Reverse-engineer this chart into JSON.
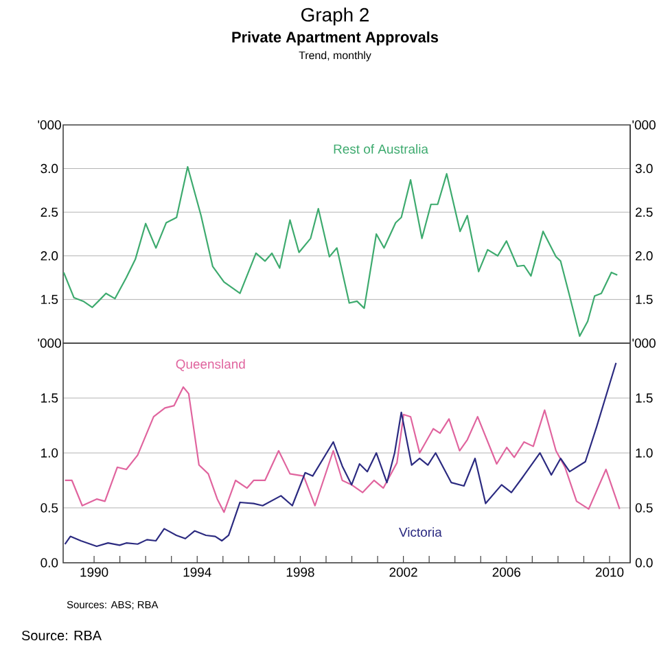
{
  "chart_data": [
    {
      "type": "line",
      "title": "Private Apartment Approvals",
      "subtitle": "Trend, monthly",
      "annotations": [
        "Graph 2"
      ],
      "xlim": [
        1988.8,
        2010.8
      ],
      "ylim": [
        1.0,
        3.5
      ],
      "ylabel": "'000",
      "y2label": "'000",
      "yticks": [
        {
          "value": 1.5,
          "label": "1.5"
        },
        {
          "value": 2.0,
          "label": "2.0"
        },
        {
          "value": 2.5,
          "label": "2.5"
        },
        {
          "value": 3.0,
          "label": "3.0"
        }
      ],
      "y2lim": [
        1.0,
        3.5
      ],
      "y2ticks": [
        {
          "value": 1.5,
          "label": "1.5"
        },
        {
          "value": 2.0,
          "label": "2.0"
        },
        {
          "value": 2.5,
          "label": "2.5"
        },
        {
          "value": 3.0,
          "label": "3.0"
        }
      ],
      "grid": "y",
      "tick_labels": "y",
      "series": [
        {
          "name": "Rest of Australia",
          "color": "#3daa6e",
          "x": [
            1988.82,
            1989.22,
            1989.58,
            1989.93,
            1990.2,
            1990.46,
            1990.81,
            1991.25,
            1991.6,
            1992.0,
            1992.4,
            1992.8,
            1993.2,
            1993.63,
            1994.15,
            1994.6,
            1995.04,
            1995.66,
            1996.28,
            1996.63,
            1996.9,
            1997.2,
            1997.6,
            1997.95,
            1998.4,
            1998.7,
            1999.13,
            1999.42,
            1999.9,
            2000.2,
            2000.48,
            2000.95,
            2001.25,
            2001.7,
            2001.92,
            2002.28,
            2002.72,
            2003.07,
            2003.33,
            2003.68,
            2004.2,
            2004.48,
            2004.92,
            2005.27,
            2005.66,
            2006.0,
            2006.42,
            2006.68,
            2006.95,
            2007.42,
            2007.92,
            2008.1,
            2008.45,
            2008.84,
            2009.15,
            2009.42,
            2009.68,
            2010.07,
            2010.3
          ],
          "values": [
            1.81,
            1.52,
            1.48,
            1.41,
            1.49,
            1.57,
            1.51,
            1.75,
            1.96,
            2.37,
            2.09,
            2.38,
            2.44,
            3.02,
            2.46,
            1.88,
            1.7,
            1.57,
            2.03,
            1.94,
            2.03,
            1.86,
            2.41,
            2.04,
            2.2,
            2.54,
            1.99,
            2.09,
            1.46,
            1.48,
            1.4,
            2.25,
            2.09,
            2.38,
            2.44,
            2.87,
            2.2,
            2.59,
            2.59,
            2.94,
            2.28,
            2.46,
            1.82,
            2.07,
            2.0,
            2.17,
            1.88,
            1.89,
            1.77,
            2.28,
            1.99,
            1.94,
            1.54,
            1.08,
            1.25,
            1.54,
            1.57,
            1.81,
            1.78
          ]
        }
      ]
    },
    {
      "type": "line",
      "annotations": [
        "Sources: ABS; RBA",
        "Source: RBA"
      ],
      "xlim": [
        1988.8,
        2010.8
      ],
      "xticks": [
        {
          "value": 1990,
          "label": "1990"
        },
        {
          "value": 1991,
          "label": null
        },
        {
          "value": 1992,
          "label": null
        },
        {
          "value": 1993,
          "label": null
        },
        {
          "value": 1994,
          "label": "1994"
        },
        {
          "value": 1995,
          "label": null
        },
        {
          "value": 1996,
          "label": null
        },
        {
          "value": 1997,
          "label": null
        },
        {
          "value": 1998,
          "label": "1998"
        },
        {
          "value": 1999,
          "label": null
        },
        {
          "value": 2000,
          "label": null
        },
        {
          "value": 2001,
          "label": null
        },
        {
          "value": 2002,
          "label": "2002"
        },
        {
          "value": 2003,
          "label": null
        },
        {
          "value": 2004,
          "label": null
        },
        {
          "value": 2005,
          "label": null
        },
        {
          "value": 2006,
          "label": "2006"
        },
        {
          "value": 2007,
          "label": null
        },
        {
          "value": 2008,
          "label": null
        },
        {
          "value": 2009,
          "label": null
        },
        {
          "value": 2010,
          "label": "2010"
        }
      ],
      "ylim": [
        0,
        2.0
      ],
      "ylabel": "'000",
      "y2label": "'000",
      "yticks": [
        {
          "value": 0,
          "label": "0.0"
        },
        {
          "value": 0.5,
          "label": "0.5"
        },
        {
          "value": 1.0,
          "label": "1.0"
        },
        {
          "value": 1.5,
          "label": "1.5"
        }
      ],
      "y2lim": [
        0,
        2.0
      ],
      "y2ticks": [
        {
          "value": 0,
          "label": "0.0"
        },
        {
          "value": 0.5,
          "label": "0.5"
        },
        {
          "value": 1.0,
          "label": "1.0"
        },
        {
          "value": 1.5,
          "label": "1.5"
        }
      ],
      "grid": "y",
      "series": [
        {
          "name": "Queensland",
          "color": "#e0649e",
          "x": [
            1988.87,
            1989.14,
            1989.54,
            1990.1,
            1990.42,
            1990.9,
            1991.25,
            1991.69,
            1992.31,
            1992.75,
            1993.1,
            1993.46,
            1993.67,
            1994.07,
            1994.43,
            1994.78,
            1995.04,
            1995.49,
            1995.93,
            1996.19,
            1996.63,
            1997.16,
            1997.6,
            1998.13,
            1998.57,
            1999.28,
            1999.63,
            1999.99,
            2000.42,
            2000.86,
            2001.22,
            2001.75,
            2002.01,
            2002.28,
            2002.63,
            2003.16,
            2003.42,
            2003.77,
            2004.18,
            2004.48,
            2004.88,
            2005.62,
            2006.01,
            2006.3,
            2006.68,
            2007.04,
            2007.48,
            2007.92,
            2008.27,
            2008.72,
            2009.19,
            2009.86,
            2010.39
          ],
          "values": [
            0.75,
            0.75,
            0.52,
            0.58,
            0.56,
            0.87,
            0.85,
            0.98,
            1.33,
            1.41,
            1.43,
            1.6,
            1.54,
            0.89,
            0.81,
            0.58,
            0.46,
            0.75,
            0.68,
            0.75,
            0.75,
            1.02,
            0.81,
            0.79,
            0.52,
            1.02,
            0.75,
            0.71,
            0.64,
            0.75,
            0.68,
            0.91,
            1.35,
            1.33,
            1.0,
            1.22,
            1.18,
            1.31,
            1.02,
            1.12,
            1.33,
            0.9,
            1.05,
            0.96,
            1.1,
            1.06,
            1.39,
            1.02,
            0.87,
            0.56,
            0.49,
            0.85,
            0.49
          ]
        },
        {
          "name": "Victoria",
          "color": "#2b2a80",
          "x": [
            1988.87,
            1989.08,
            1989.49,
            1990.1,
            1990.54,
            1990.99,
            1991.25,
            1991.69,
            1992.05,
            1992.4,
            1992.72,
            1993.19,
            1993.54,
            1993.9,
            1994.34,
            1994.7,
            1994.96,
            1995.22,
            1995.66,
            1996.19,
            1996.54,
            1997.25,
            1997.69,
            1998.19,
            1998.48,
            1999.28,
            1999.63,
            1999.99,
            2000.3,
            2000.6,
            2000.95,
            2001.36,
            2001.66,
            2001.92,
            2002.32,
            2002.63,
            2002.95,
            2003.25,
            2003.86,
            2004.35,
            2004.78,
            2005.19,
            2005.81,
            2006.19,
            2006.6,
            2007.3,
            2007.74,
            2008.1,
            2008.45,
            2009.06,
            2009.5,
            2010.25
          ],
          "values": [
            0.17,
            0.24,
            0.2,
            0.15,
            0.18,
            0.16,
            0.18,
            0.17,
            0.21,
            0.2,
            0.31,
            0.25,
            0.22,
            0.29,
            0.25,
            0.24,
            0.2,
            0.25,
            0.55,
            0.54,
            0.52,
            0.61,
            0.52,
            0.82,
            0.79,
            1.1,
            0.88,
            0.71,
            0.9,
            0.83,
            1.0,
            0.73,
            1.0,
            1.37,
            0.89,
            0.95,
            0.89,
            1.0,
            0.73,
            0.7,
            0.95,
            0.54,
            0.71,
            0.64,
            0.77,
            1.0,
            0.8,
            0.95,
            0.83,
            0.92,
            1.24,
            1.82
          ]
        }
      ]
    }
  ]
}
